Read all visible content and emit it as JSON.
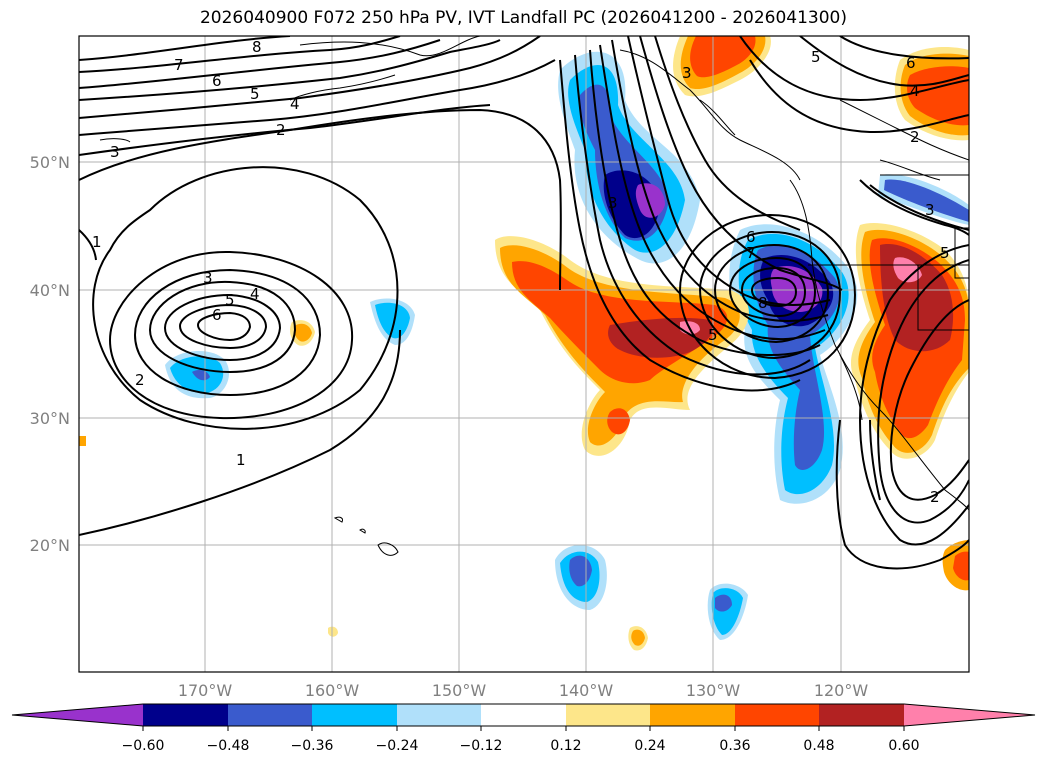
{
  "title": "2026040900 F072 250 hPa PV, IVT Landfall PC (2026041200 - 2026041300)",
  "map": {
    "lat_labels": [
      "50°N",
      "40°N",
      "30°N",
      "20°N"
    ],
    "lon_labels": [
      "170°W",
      "160°W",
      "150°W",
      "140°W",
      "130°W",
      "120°W"
    ],
    "extent": {
      "lon_min": -180,
      "lon_max": -110,
      "lat_min": 10,
      "lat_max": 60
    }
  },
  "contours": {
    "description_labels": [
      "8",
      "7",
      "6",
      "5",
      "4",
      "3",
      "2",
      "1",
      "3",
      "4",
      "5",
      "6",
      "2",
      "1",
      "5",
      "6",
      "4",
      "2",
      "3",
      "6",
      "7",
      "8",
      "5",
      "3",
      "2",
      "3",
      "5"
    ]
  },
  "colorbar": {
    "ticks": [
      "−0.60",
      "−0.48",
      "−0.36",
      "−0.24",
      "−0.12",
      "0.12",
      "0.24",
      "0.36",
      "0.48",
      "0.60"
    ],
    "colors": [
      "#9932cc",
      "#00008b",
      "#3a5bcd",
      "#00bfff",
      "#b0e0fa",
      "#ffffff",
      "#fde68a",
      "#ffa500",
      "#ff4500",
      "#b22222",
      "#ff80ab",
      "#ff80ab"
    ]
  }
}
